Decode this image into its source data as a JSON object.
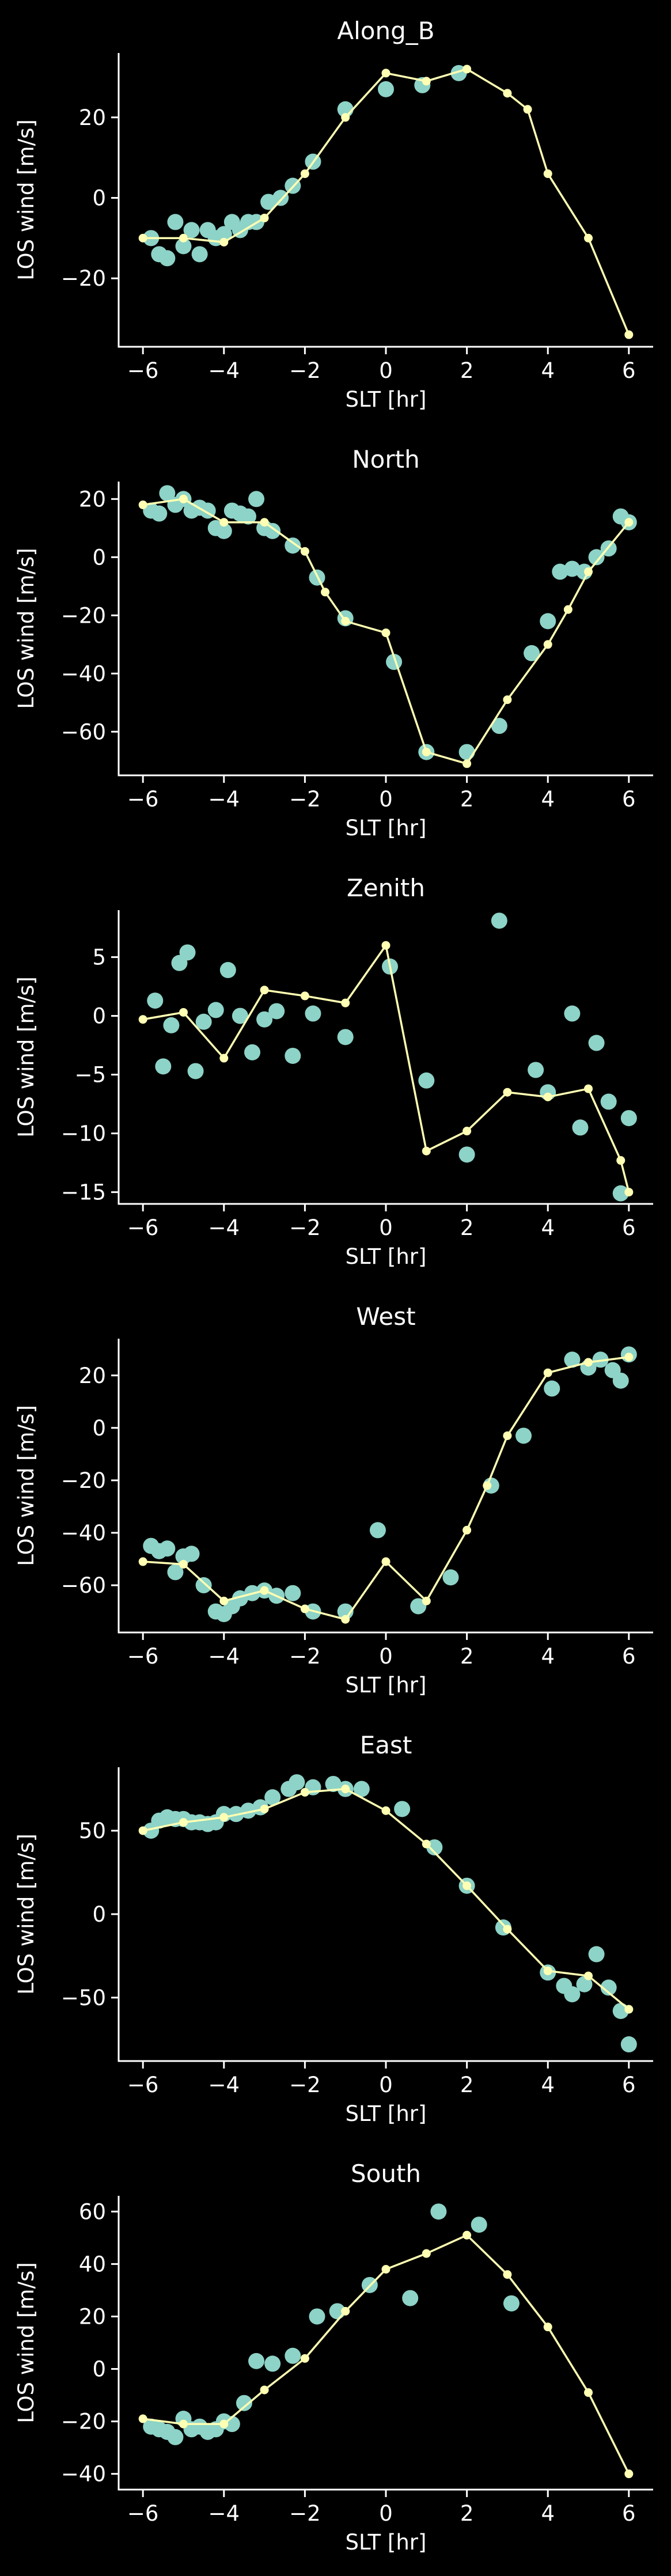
{
  "figure": {
    "background": "#000000",
    "foreground": "#ffffff",
    "scatter_color": "#8dd3c7",
    "line_color": "#ffffb3"
  },
  "chart_data": [
    {
      "type": "scatter",
      "title": "Along_B",
      "xlabel": "SLT [hr]",
      "ylabel": "LOS wind [m/s]",
      "xlim": [
        -6.6,
        6.6
      ],
      "ylim": [
        -37,
        36
      ],
      "xticks": [
        -6,
        -4,
        -2,
        0,
        2,
        4,
        6
      ],
      "yticks": [
        -20,
        0,
        20
      ],
      "grid": false,
      "series": [
        {
          "kind": "scatter",
          "x": [
            -5.8,
            -5.6,
            -5.4,
            -5.2,
            -5.0,
            -4.8,
            -4.6,
            -4.4,
            -4.2,
            -4.0,
            -3.8,
            -3.6,
            -3.4,
            -3.2,
            -2.9,
            -2.6,
            -2.3,
            -1.8,
            -1.0,
            0.0,
            0.9,
            1.8
          ],
          "y": [
            -10,
            -14,
            -15,
            -6,
            -12,
            -8,
            -14,
            -8,
            -10,
            -9,
            -6,
            -8,
            -6,
            -6,
            -1,
            0,
            3,
            9,
            22,
            27,
            28,
            31
          ]
        },
        {
          "kind": "line",
          "x": [
            -6,
            -5,
            -4,
            -3,
            -2,
            -1,
            0,
            1,
            2,
            3,
            3.5,
            4,
            5,
            6
          ],
          "y": [
            -10,
            -10,
            -11,
            -5,
            6,
            20,
            31,
            29,
            32,
            26,
            22,
            6,
            -10,
            -34
          ]
        }
      ]
    },
    {
      "type": "scatter",
      "title": "North",
      "xlabel": "SLT [hr]",
      "ylabel": "LOS wind [m/s]",
      "xlim": [
        -6.6,
        6.6
      ],
      "ylim": [
        -75,
        26
      ],
      "xticks": [
        -6,
        -4,
        -2,
        0,
        2,
        4,
        6
      ],
      "yticks": [
        -60,
        -40,
        -20,
        0,
        20
      ],
      "grid": false,
      "series": [
        {
          "kind": "scatter",
          "x": [
            -5.8,
            -5.6,
            -5.4,
            -5.2,
            -5.0,
            -4.8,
            -4.6,
            -4.4,
            -4.2,
            -4.0,
            -3.8,
            -3.6,
            -3.4,
            -3.2,
            -3.0,
            -2.8,
            -2.3,
            -1.7,
            -1.0,
            0.2,
            1.0,
            2.0,
            2.8,
            3.6,
            4.0,
            4.3,
            4.6,
            4.9,
            5.2,
            5.5,
            5.8,
            6.0
          ],
          "y": [
            16,
            15,
            22,
            18,
            20,
            16,
            17,
            16,
            10,
            9,
            16,
            15,
            14,
            20,
            10,
            9,
            4,
            -7,
            -21,
            -36,
            -67,
            -67,
            -58,
            -33,
            -22,
            -5,
            -4,
            -5,
            0,
            3,
            14,
            12
          ]
        },
        {
          "kind": "line",
          "x": [
            -6,
            -5,
            -4,
            -3,
            -2,
            -1.5,
            -1,
            0,
            1,
            2,
            3,
            4,
            4.5,
            5,
            6
          ],
          "y": [
            18,
            20,
            12,
            12,
            2,
            -12,
            -22,
            -26,
            -67,
            -71,
            -49,
            -30,
            -18,
            -5,
            12
          ]
        }
      ]
    },
    {
      "type": "scatter",
      "title": "Zenith",
      "xlabel": "SLT [hr]",
      "ylabel": "LOS wind [m/s]",
      "xlim": [
        -6.6,
        6.6
      ],
      "ylim": [
        -16,
        9
      ],
      "xticks": [
        -6,
        -4,
        -2,
        0,
        2,
        4,
        6
      ],
      "yticks": [
        -15,
        -10,
        -5,
        0,
        5
      ],
      "grid": false,
      "series": [
        {
          "kind": "scatter",
          "x": [
            -5.7,
            -5.5,
            -5.3,
            -5.1,
            -4.9,
            -4.7,
            -4.5,
            -4.2,
            -3.9,
            -3.6,
            -3.3,
            -3.0,
            -2.7,
            -2.3,
            -1.8,
            -1.0,
            0.1,
            1.0,
            2.0,
            2.8,
            3.7,
            4.0,
            4.6,
            4.8,
            5.2,
            5.5,
            5.8,
            6.0
          ],
          "y": [
            1.3,
            -4.3,
            -0.8,
            4.5,
            5.4,
            -4.7,
            -0.5,
            0.5,
            3.9,
            0,
            -3.1,
            -0.3,
            0.4,
            -3.4,
            0.2,
            -1.8,
            4.2,
            -5.5,
            -11.8,
            8.1,
            -4.6,
            -6.5,
            0.2,
            -9.5,
            -2.3,
            -7.3,
            -15.1,
            -8.7
          ]
        },
        {
          "kind": "line",
          "x": [
            -6,
            -5,
            -4,
            -3,
            -2,
            -1,
            0,
            1,
            2,
            3,
            4,
            5,
            5.8,
            6
          ],
          "y": [
            -0.3,
            0.3,
            -3.6,
            2.2,
            1.7,
            1.1,
            6.0,
            -11.5,
            -9.8,
            -6.5,
            -6.9,
            -6.2,
            -12.3,
            -15.0
          ]
        }
      ]
    },
    {
      "type": "scatter",
      "title": "West",
      "xlabel": "SLT [hr]",
      "ylabel": "LOS wind [m/s]",
      "xlim": [
        -6.6,
        6.6
      ],
      "ylim": [
        -78,
        34
      ],
      "xticks": [
        -6,
        -4,
        -2,
        0,
        2,
        4,
        6
      ],
      "yticks": [
        -60,
        -40,
        -20,
        0,
        20
      ],
      "grid": false,
      "series": [
        {
          "kind": "scatter",
          "x": [
            -5.8,
            -5.6,
            -5.4,
            -5.2,
            -5.0,
            -4.8,
            -4.5,
            -4.2,
            -4.0,
            -3.8,
            -3.6,
            -3.3,
            -3.0,
            -2.7,
            -2.3,
            -1.8,
            -1.0,
            -0.2,
            0.8,
            1.6,
            2.6,
            3.4,
            4.1,
            4.6,
            5.0,
            5.3,
            5.6,
            5.8,
            6.0
          ],
          "y": [
            -45,
            -47,
            -46,
            -55,
            -49,
            -48,
            -60,
            -70,
            -71,
            -68,
            -65,
            -63,
            -62,
            -64,
            -63,
            -70,
            -70,
            -39,
            -68,
            -57,
            -22,
            -3,
            15,
            26,
            23,
            26,
            22,
            18,
            28
          ]
        },
        {
          "kind": "line",
          "x": [
            -6,
            -5,
            -4,
            -3,
            -2,
            -1,
            0,
            1,
            2,
            2.5,
            3,
            4,
            5,
            6
          ],
          "y": [
            -51,
            -52,
            -66,
            -62,
            -69,
            -73,
            -51,
            -66,
            -39,
            -22,
            -3,
            21,
            25,
            27
          ]
        }
      ]
    },
    {
      "type": "scatter",
      "title": "East",
      "xlabel": "SLT [hr]",
      "ylabel": "LOS wind [m/s]",
      "xlim": [
        -6.6,
        6.6
      ],
      "ylim": [
        -88,
        88
      ],
      "xticks": [
        -6,
        -4,
        -2,
        0,
        2,
        4,
        6
      ],
      "yticks": [
        -50,
        0,
        50
      ],
      "grid": false,
      "series": [
        {
          "kind": "scatter",
          "x": [
            -5.8,
            -5.6,
            -5.4,
            -5.2,
            -5.0,
            -4.8,
            -4.6,
            -4.4,
            -4.2,
            -4.0,
            -3.7,
            -3.4,
            -3.1,
            -2.8,
            -2.4,
            -2.2,
            -1.8,
            -1.3,
            -1.0,
            -0.6,
            0.4,
            1.2,
            2.0,
            2.9,
            4.0,
            4.4,
            4.6,
            4.9,
            5.2,
            5.5,
            5.8,
            6.0
          ],
          "y": [
            50,
            56,
            58,
            57,
            57,
            55,
            55,
            54,
            55,
            60,
            60,
            62,
            64,
            70,
            75,
            79,
            76,
            78,
            75,
            75,
            63,
            40,
            17,
            -8,
            -35,
            -43,
            -48,
            -42,
            -24,
            -44,
            -58,
            -78
          ]
        },
        {
          "kind": "line",
          "x": [
            -6,
            -5,
            -4,
            -3,
            -2,
            -1,
            0,
            1,
            2,
            3,
            4,
            5,
            6
          ],
          "y": [
            50,
            55,
            58,
            63,
            73,
            75,
            62,
            42,
            17,
            -9,
            -34,
            -37,
            -57
          ]
        }
      ]
    },
    {
      "type": "scatter",
      "title": "South",
      "xlabel": "SLT [hr]",
      "ylabel": "LOS wind [m/s]",
      "xlim": [
        -6.6,
        6.6
      ],
      "ylim": [
        -46,
        66
      ],
      "xticks": [
        -6,
        -4,
        -2,
        0,
        2,
        4,
        6
      ],
      "yticks": [
        -40,
        -20,
        0,
        20,
        40,
        60
      ],
      "grid": false,
      "series": [
        {
          "kind": "scatter",
          "x": [
            -5.8,
            -5.6,
            -5.4,
            -5.2,
            -5.0,
            -4.8,
            -4.6,
            -4.4,
            -4.2,
            -4.0,
            -3.8,
            -3.5,
            -3.2,
            -2.8,
            -2.3,
            -1.7,
            -1.2,
            -0.4,
            0.6,
            1.3,
            2.3,
            3.1
          ],
          "y": [
            -22,
            -23,
            -24,
            -26,
            -19,
            -23,
            -22,
            -24,
            -23,
            -20,
            -21,
            -13,
            3,
            2,
            5,
            20,
            22,
            32,
            27,
            60,
            55,
            25
          ]
        },
        {
          "kind": "line",
          "x": [
            -6,
            -5,
            -4,
            -3,
            -2,
            -1,
            0,
            1,
            2,
            3,
            4,
            5,
            6
          ],
          "y": [
            -19,
            -21,
            -21,
            -8,
            4,
            22,
            38,
            44,
            51,
            36,
            16,
            -9,
            -40
          ]
        }
      ]
    }
  ]
}
